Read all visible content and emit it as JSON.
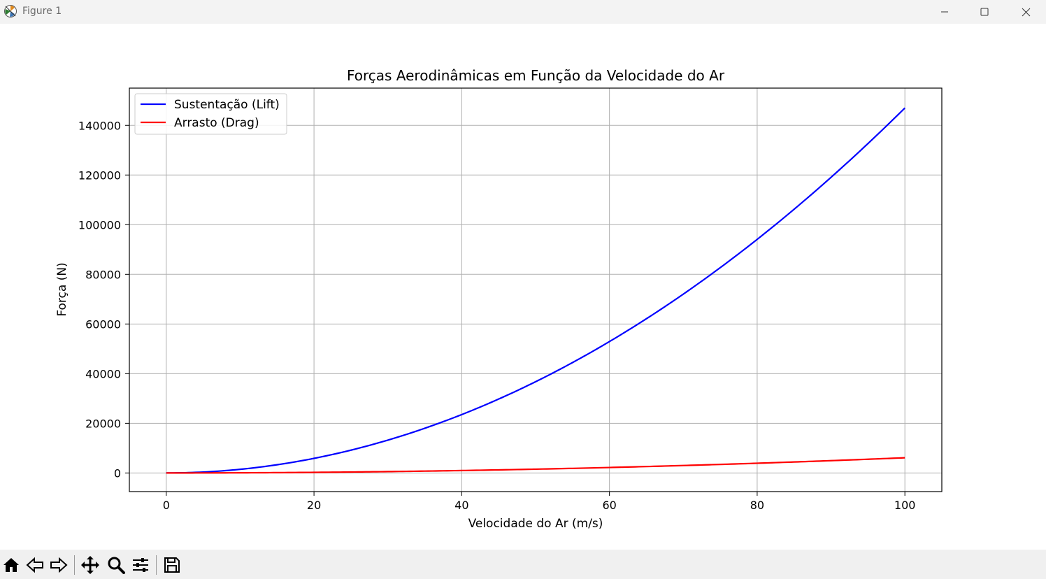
{
  "window": {
    "title": "Figure 1",
    "icons": {
      "app": "matplotlib-icon",
      "minimize": "minimize-icon",
      "maximize": "maximize-icon",
      "close": "close-icon"
    }
  },
  "toolbar": {
    "buttons": [
      "home-icon",
      "back-icon",
      "forward-icon",
      "pan-icon",
      "zoom-icon",
      "configure-subplots-icon",
      "save-icon"
    ]
  },
  "chart_data": {
    "type": "line",
    "title": "Forças Aerodinâmicas em Função da Velocidade do Ar",
    "xlabel": "Velocidade do Ar (m/s)",
    "ylabel": "Força (N)",
    "xlim": [
      -5,
      105
    ],
    "ylim": [
      -7500,
      155000
    ],
    "xticks": [
      0,
      20,
      40,
      60,
      80,
      100
    ],
    "yticks": [
      0,
      20000,
      40000,
      60000,
      80000,
      100000,
      120000,
      140000
    ],
    "grid": true,
    "legend_position": "upper-left",
    "x": [
      0,
      10,
      20,
      30,
      40,
      50,
      60,
      70,
      80,
      90,
      100
    ],
    "series": [
      {
        "name": "Sustentação (Lift)",
        "color": "#0000ff",
        "values": [
          0,
          1470,
          5880,
          13230,
          23520,
          36750,
          52920,
          72030,
          94080,
          119070,
          147000
        ]
      },
      {
        "name": "Arrasto (Drag)",
        "color": "#ff0000",
        "values": [
          0,
          61,
          245,
          551,
          980,
          1531,
          2205,
          3001,
          3920,
          4961,
          6125
        ]
      }
    ]
  }
}
